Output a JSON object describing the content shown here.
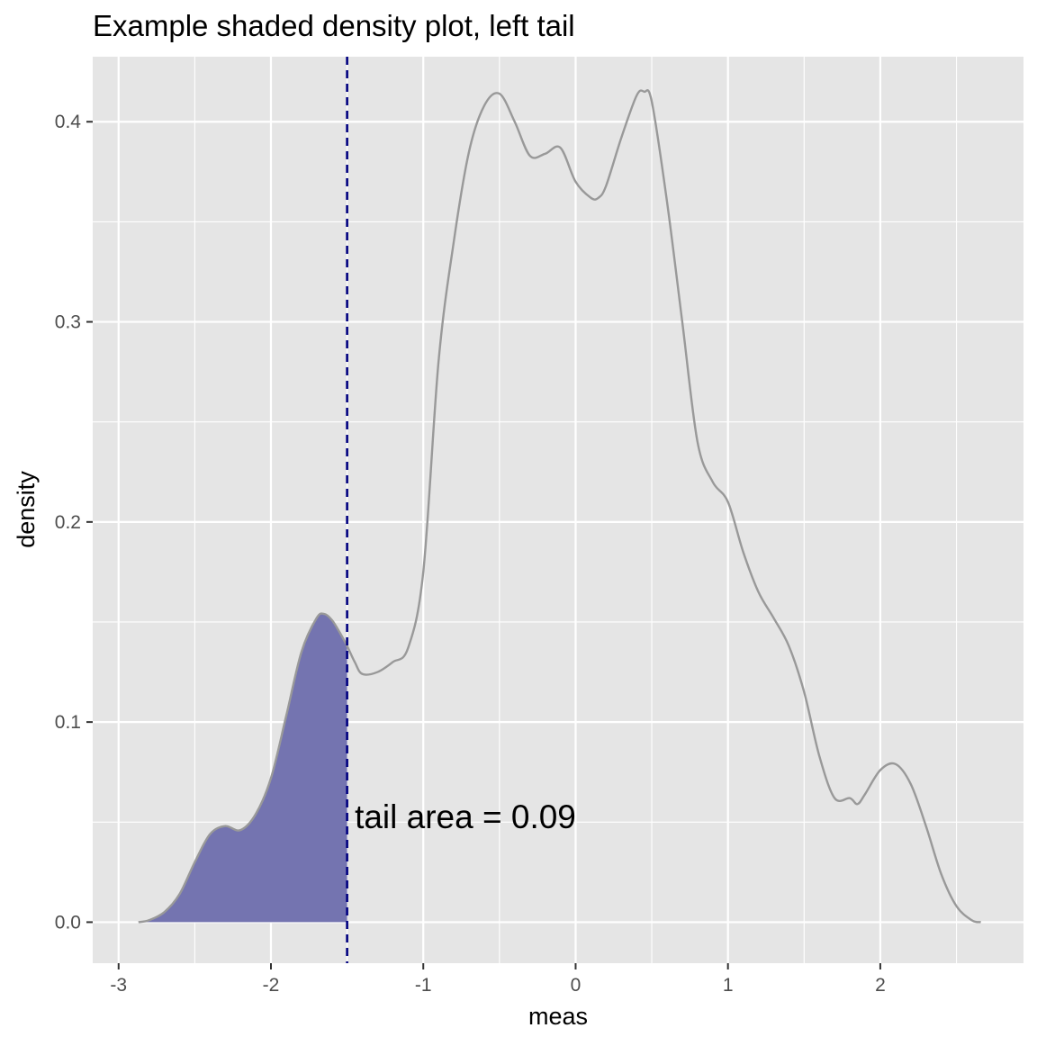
{
  "chart_data": {
    "type": "area",
    "title": "Example shaded density plot, left tail",
    "xlabel": "meas",
    "ylabel": "density",
    "xlim": [
      -3.17,
      2.94
    ],
    "ylim": [
      -0.0205,
      0.4325
    ],
    "x_ticks": [
      -3,
      -2,
      -1,
      0,
      1,
      2
    ],
    "x_tick_labels": [
      "-3",
      "-2",
      "-1",
      "0",
      "1",
      "2"
    ],
    "y_ticks": [
      0.0,
      0.1,
      0.2,
      0.3,
      0.4
    ],
    "y_tick_labels": [
      "0.0",
      "0.1",
      "0.2",
      "0.3",
      "0.4"
    ],
    "grid": true,
    "threshold": -1.5,
    "annotation": "tail area =  0.09",
    "annotation_position": [
      -1.45,
      0.047
    ],
    "colors": {
      "panel": "#e5e5e5",
      "grid": "#ffffff",
      "curve": "#999999",
      "fill": "#7474b0",
      "threshold_line": "#000080"
    },
    "series": [
      {
        "x": [
          -2.87,
          -2.8,
          -2.7,
          -2.6,
          -2.5,
          -2.4,
          -2.3,
          -2.2,
          -2.1,
          -2.0,
          -1.9,
          -1.8,
          -1.7,
          -1.65,
          -1.6,
          -1.55,
          -1.5,
          -1.45,
          -1.4,
          -1.3,
          -1.2,
          -1.1,
          -1.0,
          -0.9,
          -0.8,
          -0.7,
          -0.6,
          -0.5,
          -0.4,
          -0.3,
          -0.2,
          -0.1,
          0.0,
          0.1,
          0.15,
          0.2,
          0.3,
          0.4,
          0.45,
          0.5,
          0.6,
          0.7,
          0.8,
          0.9,
          1.0,
          1.1,
          1.2,
          1.3,
          1.4,
          1.5,
          1.6,
          1.7,
          1.8,
          1.85,
          1.9,
          2.0,
          2.1,
          2.2,
          2.3,
          2.4,
          2.5,
          2.6,
          2.66
        ],
        "y": [
          0.0,
          0.001,
          0.005,
          0.014,
          0.03,
          0.044,
          0.048,
          0.046,
          0.054,
          0.072,
          0.103,
          0.135,
          0.152,
          0.154,
          0.151,
          0.145,
          0.138,
          0.13,
          0.124,
          0.125,
          0.13,
          0.137,
          0.175,
          0.28,
          0.34,
          0.385,
          0.408,
          0.414,
          0.4,
          0.383,
          0.384,
          0.387,
          0.37,
          0.362,
          0.362,
          0.368,
          0.392,
          0.413,
          0.415,
          0.41,
          0.36,
          0.3,
          0.24,
          0.22,
          0.21,
          0.185,
          0.165,
          0.152,
          0.138,
          0.115,
          0.083,
          0.062,
          0.062,
          0.059,
          0.064,
          0.076,
          0.079,
          0.069,
          0.048,
          0.024,
          0.008,
          0.001,
          0.0
        ]
      }
    ]
  }
}
